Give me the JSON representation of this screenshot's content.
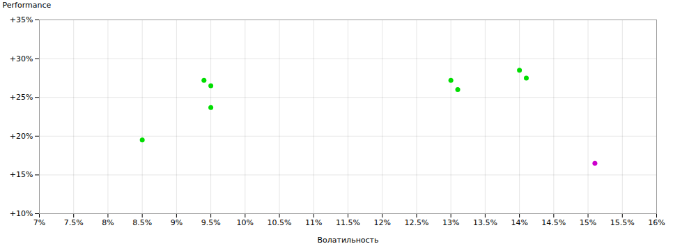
{
  "chart_data": {
    "type": "scatter",
    "xlabel": "Волатильность",
    "ylabel": "Performance",
    "xlim": [
      0.07,
      0.16
    ],
    "ylim": [
      0.1,
      0.35
    ],
    "xticks": [
      {
        "value": 0.07,
        "label": "7%"
      },
      {
        "value": 0.075,
        "label": "7.5%"
      },
      {
        "value": 0.08,
        "label": "8%"
      },
      {
        "value": 0.085,
        "label": "8.5%"
      },
      {
        "value": 0.09,
        "label": "9%"
      },
      {
        "value": 0.095,
        "label": "9.5%"
      },
      {
        "value": 0.1,
        "label": "10%"
      },
      {
        "value": 0.105,
        "label": "10.5%"
      },
      {
        "value": 0.11,
        "label": "11%"
      },
      {
        "value": 0.115,
        "label": "11.5%"
      },
      {
        "value": 0.12,
        "label": "12%"
      },
      {
        "value": 0.125,
        "label": "12.5%"
      },
      {
        "value": 0.13,
        "label": "13%"
      },
      {
        "value": 0.135,
        "label": "13.5%"
      },
      {
        "value": 0.14,
        "label": "14%"
      },
      {
        "value": 0.145,
        "label": "14.5%"
      },
      {
        "value": 0.15,
        "label": "15%"
      },
      {
        "value": 0.155,
        "label": "15.5%"
      },
      {
        "value": 0.16,
        "label": "16%"
      }
    ],
    "yticks": [
      {
        "value": 0.1,
        "label": "+10%"
      },
      {
        "value": 0.15,
        "label": "+15%"
      },
      {
        "value": 0.2,
        "label": "+20%"
      },
      {
        "value": 0.25,
        "label": "+25%"
      },
      {
        "value": 0.3,
        "label": "+30%"
      },
      {
        "value": 0.35,
        "label": "+35%"
      }
    ],
    "grid": true,
    "series": [
      {
        "color": "#00dd00",
        "x": [
          0.085,
          0.094,
          0.095,
          0.095,
          0.13,
          0.131,
          0.14,
          0.141
        ],
        "values": [
          0.195,
          0.272,
          0.265,
          0.237,
          0.272,
          0.26,
          0.285,
          0.275
        ]
      },
      {
        "color": "#cc00cc",
        "x": [
          0.151
        ],
        "values": [
          0.165
        ]
      }
    ]
  }
}
